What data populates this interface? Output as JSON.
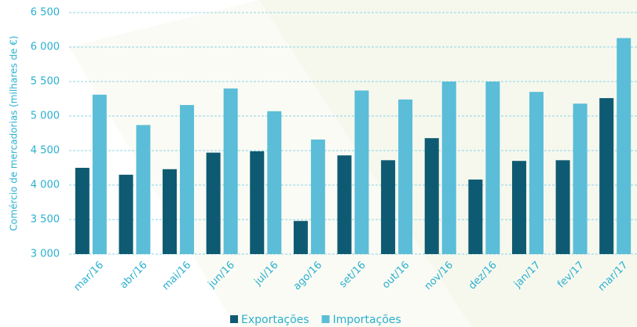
{
  "chart_data": {
    "type": "bar",
    "y_label": "Comércio de mercadorias (milhares de €)",
    "categories": [
      "mar/16",
      "abr/16",
      "mai/16",
      "jun/16",
      "jul/16",
      "ago/16",
      "set/16",
      "out/16",
      "nov/16",
      "dez/16",
      "jan/17",
      "fev/17",
      "mar/17"
    ],
    "series": [
      {
        "name": "Exportações",
        "color": "#0e5a72",
        "values": [
          4250,
          4150,
          4230,
          4470,
          4490,
          3480,
          4430,
          4360,
          4680,
          4080,
          4350,
          4360,
          5260
        ]
      },
      {
        "name": "Importações",
        "color": "#5bbdd7",
        "values": [
          5310,
          4870,
          5160,
          5400,
          5070,
          4660,
          5370,
          5240,
          5500,
          5500,
          5350,
          5180,
          6130
        ]
      }
    ],
    "ylim": [
      3000,
      6500
    ],
    "yticks": [
      {
        "value": 3000,
        "label": "3 000"
      },
      {
        "value": 3500,
        "label": "3 500"
      },
      {
        "value": 4000,
        "label": "4 000"
      },
      {
        "value": 4500,
        "label": "4 500"
      },
      {
        "value": 5000,
        "label": "5 000"
      },
      {
        "value": 5500,
        "label": "5 500"
      },
      {
        "value": 6000,
        "label": "6 000"
      },
      {
        "value": 6500,
        "label": "6 500"
      }
    ],
    "grid": true
  }
}
